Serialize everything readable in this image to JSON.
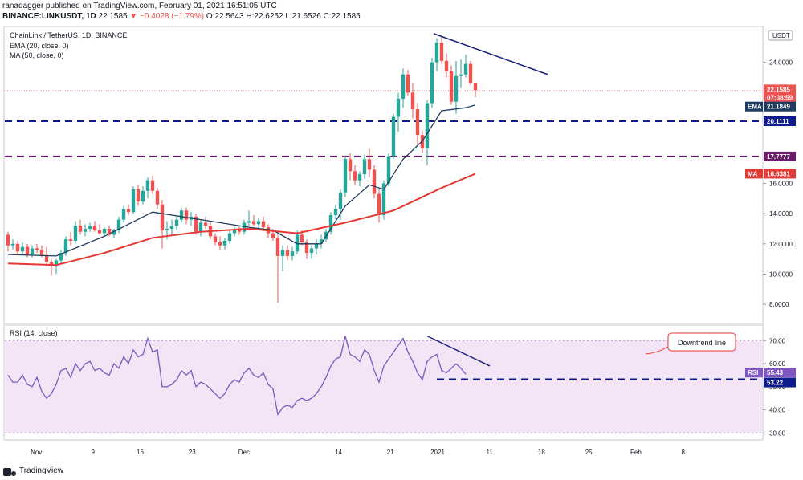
{
  "header": {
    "published": "ranadagger published on TradingView.com, February 01, 2021 16:51:05 UTC",
    "symbol": "BINANCE:LINKUSDT, 1D",
    "last": "22.1585",
    "change": "▼ −0.4028 (−1.79%)",
    "ohlc": "O:22.5643 H:22.6252 L:21.6526 C:22.1585"
  },
  "legend": {
    "title": "ChainLink / TetherUS, 1D, BINANCE",
    "ema": "EMA (20, close, 0)",
    "ma": "MA (50, close, 0)",
    "rsi": "RSI (14, close)"
  },
  "currency": "USDT",
  "annotation": "Downtrend line",
  "footer": {
    "brand": "TradingView"
  },
  "colors": {
    "up": "#26a69a",
    "down": "#ef5350",
    "ema": "#1e3a5f",
    "ma": "#e53935",
    "support": "#0d1b8c",
    "resistance": "#6a1b6a",
    "rsi_line": "#7e57c2",
    "rsi_band": "#f3e5f5",
    "trend": "#1a237e"
  },
  "chart_data": [
    {
      "type": "candlestick",
      "title": "ChainLink / TetherUS, 1D, BINANCE",
      "ylim": [
        7,
        26
      ],
      "y_ticks": [
        "24.0000",
        "16.0000",
        "14.0000",
        "12.0000",
        "10.0000",
        "8.0000"
      ],
      "x_ticks": [
        "Nov",
        "9",
        "16",
        "23",
        "Dec",
        "14",
        "21",
        "2021",
        "11",
        "18",
        "25",
        "Feb",
        "8"
      ],
      "horizontal_levels": [
        {
          "value": 20.1111,
          "label": "20.1111"
        },
        {
          "value": 17.7777,
          "label": "17.7777"
        }
      ],
      "price_labels": [
        {
          "name": "last",
          "value": 22.1585,
          "label": "22.1585",
          "sub": "07:08:59"
        },
        {
          "name": "EMA",
          "value": 21.1849,
          "label": "21.1849"
        },
        {
          "name": "MA",
          "value": 16.6381,
          "label": "16.6381"
        }
      ],
      "trendline": {
        "start": 25.9,
        "end": 23.2
      },
      "candles": [
        [
          12.6,
          12.8,
          11.5,
          11.9
        ],
        [
          11.9,
          12.3,
          11.6,
          12.0
        ],
        [
          12.0,
          12.2,
          11.3,
          11.5
        ],
        [
          11.5,
          12.1,
          11.3,
          11.8
        ],
        [
          11.8,
          12.0,
          11.1,
          11.3
        ],
        [
          11.3,
          11.9,
          11.1,
          11.7
        ],
        [
          11.7,
          12.0,
          11.4,
          11.6
        ],
        [
          11.6,
          11.9,
          11.1,
          11.2
        ],
        [
          11.2,
          11.8,
          10.6,
          10.8
        ],
        [
          10.8,
          11.0,
          9.9,
          10.6
        ],
        [
          10.6,
          11.0,
          10.0,
          10.9
        ],
        [
          10.9,
          11.6,
          10.7,
          11.4
        ],
        [
          11.4,
          12.5,
          11.2,
          12.3
        ],
        [
          12.3,
          12.8,
          11.9,
          12.2
        ],
        [
          12.2,
          13.5,
          12.0,
          13.2
        ],
        [
          13.2,
          13.6,
          12.6,
          12.8
        ],
        [
          12.8,
          13.3,
          12.5,
          13.0
        ],
        [
          13.0,
          13.4,
          12.8,
          13.2
        ],
        [
          13.2,
          13.5,
          12.8,
          12.9
        ],
        [
          12.9,
          13.3,
          12.6,
          12.7
        ],
        [
          12.7,
          13.1,
          12.5,
          13.0
        ],
        [
          13.0,
          13.2,
          12.5,
          12.6
        ],
        [
          12.6,
          13.0,
          12.4,
          12.9
        ],
        [
          12.9,
          13.8,
          12.7,
          13.6
        ],
        [
          13.6,
          14.5,
          13.4,
          14.3
        ],
        [
          14.3,
          14.6,
          13.9,
          14.1
        ],
        [
          14.1,
          15.8,
          14.0,
          15.6
        ],
        [
          15.6,
          15.9,
          14.5,
          14.8
        ],
        [
          14.8,
          15.8,
          14.6,
          15.5
        ],
        [
          15.5,
          16.4,
          15.0,
          16.2
        ],
        [
          16.2,
          16.5,
          15.3,
          15.5
        ],
        [
          15.5,
          15.7,
          14.3,
          14.6
        ],
        [
          14.6,
          14.9,
          11.7,
          12.9
        ],
        [
          12.9,
          13.5,
          12.3,
          13.0
        ],
        [
          13.0,
          13.6,
          12.6,
          13.2
        ],
        [
          13.2,
          13.8,
          12.9,
          13.6
        ],
        [
          13.6,
          14.4,
          13.4,
          14.2
        ],
        [
          14.2,
          14.4,
          13.3,
          13.6
        ],
        [
          13.6,
          14.1,
          13.2,
          13.8
        ],
        [
          13.8,
          14.0,
          12.6,
          12.8
        ],
        [
          12.8,
          13.6,
          12.5,
          13.4
        ],
        [
          13.4,
          13.8,
          13.0,
          13.2
        ],
        [
          13.2,
          13.5,
          12.3,
          12.5
        ],
        [
          12.5,
          12.7,
          11.9,
          12.1
        ],
        [
          12.1,
          12.5,
          11.6,
          11.9
        ],
        [
          11.9,
          12.4,
          11.6,
          12.2
        ],
        [
          12.2,
          12.9,
          12.0,
          12.7
        ],
        [
          12.7,
          13.1,
          12.5,
          12.9
        ],
        [
          12.9,
          13.2,
          12.6,
          12.8
        ],
        [
          12.8,
          13.6,
          12.6,
          13.4
        ],
        [
          13.4,
          14.2,
          13.2,
          13.5
        ],
        [
          13.5,
          13.9,
          13.2,
          13.3
        ],
        [
          13.3,
          13.7,
          13.0,
          13.5
        ],
        [
          13.5,
          13.8,
          13.0,
          13.1
        ],
        [
          13.1,
          13.3,
          12.4,
          12.7
        ],
        [
          12.7,
          13.0,
          12.2,
          12.4
        ],
        [
          12.4,
          12.6,
          8.1,
          11.2
        ],
        [
          11.2,
          11.9,
          10.2,
          11.6
        ],
        [
          11.6,
          11.9,
          10.9,
          11.2
        ],
        [
          11.2,
          11.8,
          10.9,
          11.5
        ],
        [
          11.5,
          12.9,
          11.3,
          12.6
        ],
        [
          12.6,
          12.9,
          11.9,
          12.1
        ],
        [
          12.1,
          12.3,
          11.0,
          11.4
        ],
        [
          11.4,
          11.9,
          11.0,
          11.7
        ],
        [
          11.7,
          12.3,
          11.3,
          12.0
        ],
        [
          12.0,
          12.6,
          11.7,
          12.3
        ],
        [
          12.3,
          13.0,
          12.1,
          12.8
        ],
        [
          12.8,
          14.1,
          12.6,
          13.9
        ],
        [
          13.9,
          14.6,
          13.6,
          14.3
        ],
        [
          14.3,
          15.6,
          13.6,
          15.4
        ],
        [
          15.4,
          17.8,
          15.1,
          17.6
        ],
        [
          17.6,
          18.0,
          16.2,
          16.8
        ],
        [
          16.8,
          17.2,
          15.9,
          16.2
        ],
        [
          16.2,
          16.8,
          15.8,
          16.6
        ],
        [
          16.6,
          17.9,
          16.3,
          17.6
        ],
        [
          17.6,
          18.3,
          16.4,
          16.9
        ],
        [
          16.9,
          17.2,
          15.0,
          15.3
        ],
        [
          15.3,
          15.6,
          13.4,
          13.9
        ],
        [
          13.9,
          16.2,
          13.6,
          16.0
        ],
        [
          16.0,
          18.0,
          15.8,
          17.8
        ],
        [
          17.8,
          20.6,
          17.6,
          20.4
        ],
        [
          20.4,
          22.0,
          19.4,
          21.6
        ],
        [
          21.6,
          23.6,
          21.0,
          23.2
        ],
        [
          23.2,
          23.5,
          21.8,
          22.0
        ],
        [
          22.0,
          22.6,
          20.3,
          20.9
        ],
        [
          20.9,
          21.3,
          18.5,
          19.2
        ],
        [
          19.2,
          19.5,
          18.0,
          18.3
        ],
        [
          18.3,
          21.5,
          17.2,
          21.3
        ],
        [
          21.3,
          24.3,
          21.0,
          24.0
        ],
        [
          24.0,
          25.6,
          23.4,
          25.3
        ],
        [
          25.3,
          25.7,
          23.9,
          24.1
        ],
        [
          24.1,
          24.6,
          23.0,
          23.4
        ],
        [
          23.4,
          23.8,
          21.2,
          21.4
        ],
        [
          21.4,
          24.1,
          20.6,
          23.1
        ],
        [
          23.1,
          24.2,
          22.3,
          23.2
        ],
        [
          23.2,
          24.5,
          23.0,
          23.9
        ],
        [
          23.9,
          24.1,
          22.5,
          22.6
        ],
        [
          22.6,
          22.6,
          21.7,
          22.1585
        ]
      ],
      "ema20": [
        [
          0,
          11.3
        ],
        [
          10,
          11.2
        ],
        [
          20,
          12.5
        ],
        [
          30,
          14.1
        ],
        [
          40,
          13.6
        ],
        [
          50,
          13.1
        ],
        [
          55,
          12.9
        ],
        [
          60,
          12.0
        ],
        [
          65,
          12.0
        ],
        [
          70,
          14.5
        ],
        [
          75,
          15.9
        ],
        [
          78,
          15.6
        ],
        [
          82,
          17.6
        ],
        [
          86,
          18.8
        ],
        [
          90,
          20.8
        ],
        [
          95,
          21.0
        ],
        [
          97,
          21.1849
        ]
      ],
      "ma50": [
        [
          0,
          10.7
        ],
        [
          10,
          10.6
        ],
        [
          20,
          11.4
        ],
        [
          30,
          12.4
        ],
        [
          40,
          12.8
        ],
        [
          50,
          13.0
        ],
        [
          60,
          12.7
        ],
        [
          70,
          13.4
        ],
        [
          80,
          14.2
        ],
        [
          90,
          15.7
        ],
        [
          97,
          16.6381
        ]
      ]
    },
    {
      "type": "line",
      "title": "RSI (14, close)",
      "ylim": [
        28,
        75
      ],
      "y_ticks": [
        "70.00",
        "60.00",
        "50.00",
        "40.00",
        "30.00"
      ],
      "overbought": 70,
      "oversold": 30,
      "last_label": "55.43",
      "support_label": "53.22",
      "rsi_levels": {
        "last": 55.43,
        "support": 53.22
      },
      "values": [
        55,
        52,
        52,
        55,
        51,
        50,
        54,
        48,
        45,
        47,
        51,
        57,
        58,
        54,
        60,
        57,
        60,
        61,
        57,
        58,
        56,
        55,
        60,
        58,
        63,
        60,
        66,
        63,
        64,
        71,
        65,
        66,
        50,
        50,
        51,
        53,
        57,
        55,
        57,
        50,
        52,
        51,
        49,
        47,
        45,
        47,
        51,
        53,
        52,
        56,
        58,
        55,
        54,
        56,
        51,
        49,
        38,
        41,
        42,
        41,
        44,
        45,
        44,
        45,
        47,
        50,
        54,
        59,
        62,
        63,
        72,
        64,
        63,
        61,
        66,
        64,
        57,
        52,
        59,
        62,
        65,
        68,
        71,
        65,
        61,
        56,
        53,
        61,
        63,
        64,
        57,
        56,
        58,
        60,
        58,
        55.43
      ]
    }
  ]
}
